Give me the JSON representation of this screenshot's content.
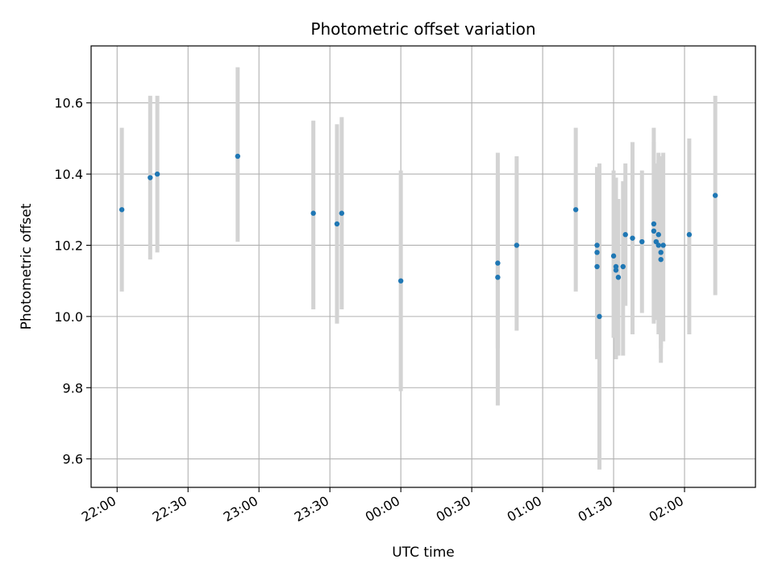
{
  "chart_data": {
    "type": "scatter",
    "title": "Photometric offset variation",
    "xlabel": "UTC time",
    "ylabel": "Photometric offset",
    "x_axis": "time",
    "xlim": [
      "21:49",
      "02:30"
    ],
    "ylim": [
      9.52,
      10.76
    ],
    "grid": true,
    "x_ticks": [
      "22:00",
      "22:30",
      "23:00",
      "23:30",
      "00:00",
      "00:30",
      "01:00",
      "01:30",
      "02:00"
    ],
    "y_ticks": [
      "9.6",
      "9.8",
      "10.0",
      "10.2",
      "10.4",
      "10.6"
    ],
    "colors": {
      "points": "#1f77b4",
      "error_bars": "#d3d3d3",
      "grid": "#b0b0b0"
    },
    "points": [
      {
        "x": "22:02",
        "y": 10.3,
        "y_low": 10.07,
        "y_high": 10.53
      },
      {
        "x": "22:14",
        "y": 10.39,
        "y_low": 10.16,
        "y_high": 10.62
      },
      {
        "x": "22:17",
        "y": 10.4,
        "y_low": 10.18,
        "y_high": 10.62
      },
      {
        "x": "22:51",
        "y": 10.45,
        "y_low": 10.21,
        "y_high": 10.7
      },
      {
        "x": "23:23",
        "y": 10.29,
        "y_low": 10.02,
        "y_high": 10.55
      },
      {
        "x": "23:33",
        "y": 10.26,
        "y_low": 9.98,
        "y_high": 10.54
      },
      {
        "x": "23:35",
        "y": 10.29,
        "y_low": 10.02,
        "y_high": 10.56
      },
      {
        "x": "00:00",
        "y": 10.1,
        "y_low": 9.79,
        "y_high": 10.41
      },
      {
        "x": "00:41",
        "y": 10.15,
        "y_low": 9.91,
        "y_high": 10.4
      },
      {
        "x": "00:41",
        "y": 10.11,
        "y_low": 9.75,
        "y_high": 10.46
      },
      {
        "x": "00:49",
        "y": 10.2,
        "y_low": 9.96,
        "y_high": 10.45
      },
      {
        "x": "01:14",
        "y": 10.3,
        "y_low": 10.07,
        "y_high": 10.53
      },
      {
        "x": "01:23",
        "y": 10.2,
        "y_low": 9.98,
        "y_high": 10.42
      },
      {
        "x": "01:23",
        "y": 10.18,
        "y_low": 9.96,
        "y_high": 10.4
      },
      {
        "x": "01:23",
        "y": 10.14,
        "y_low": 9.88,
        "y_high": 10.39
      },
      {
        "x": "01:24",
        "y": 10.0,
        "y_low": 9.57,
        "y_high": 10.43
      },
      {
        "x": "01:30",
        "y": 10.17,
        "y_low": 9.94,
        "y_high": 10.41
      },
      {
        "x": "01:31",
        "y": 10.13,
        "y_low": 9.88,
        "y_high": 10.38
      },
      {
        "x": "01:31",
        "y": 10.14,
        "y_low": 9.88,
        "y_high": 10.39
      },
      {
        "x": "01:32",
        "y": 10.11,
        "y_low": 9.89,
        "y_high": 10.33
      },
      {
        "x": "01:34",
        "y": 10.14,
        "y_low": 9.89,
        "y_high": 10.38
      },
      {
        "x": "01:35",
        "y": 10.23,
        "y_low": 10.03,
        "y_high": 10.43
      },
      {
        "x": "01:38",
        "y": 10.22,
        "y_low": 9.95,
        "y_high": 10.49
      },
      {
        "x": "01:42",
        "y": 10.21,
        "y_low": 10.01,
        "y_high": 10.41
      },
      {
        "x": "01:47",
        "y": 10.26,
        "y_low": 9.99,
        "y_high": 10.53
      },
      {
        "x": "01:47",
        "y": 10.24,
        "y_low": 9.98,
        "y_high": 10.49
      },
      {
        "x": "01:48",
        "y": 10.21,
        "y_low": 9.99,
        "y_high": 10.43
      },
      {
        "x": "01:49",
        "y": 10.23,
        "y_low": 10.0,
        "y_high": 10.46
      },
      {
        "x": "01:49",
        "y": 10.2,
        "y_low": 9.95,
        "y_high": 10.44
      },
      {
        "x": "01:50",
        "y": 10.18,
        "y_low": 9.91,
        "y_high": 10.45
      },
      {
        "x": "01:50",
        "y": 10.16,
        "y_low": 9.87,
        "y_high": 10.45
      },
      {
        "x": "01:51",
        "y": 10.2,
        "y_low": 9.93,
        "y_high": 10.46
      },
      {
        "x": "02:02",
        "y": 10.23,
        "y_low": 9.95,
        "y_high": 10.5
      },
      {
        "x": "02:13",
        "y": 10.34,
        "y_low": 10.06,
        "y_high": 10.62
      }
    ]
  }
}
